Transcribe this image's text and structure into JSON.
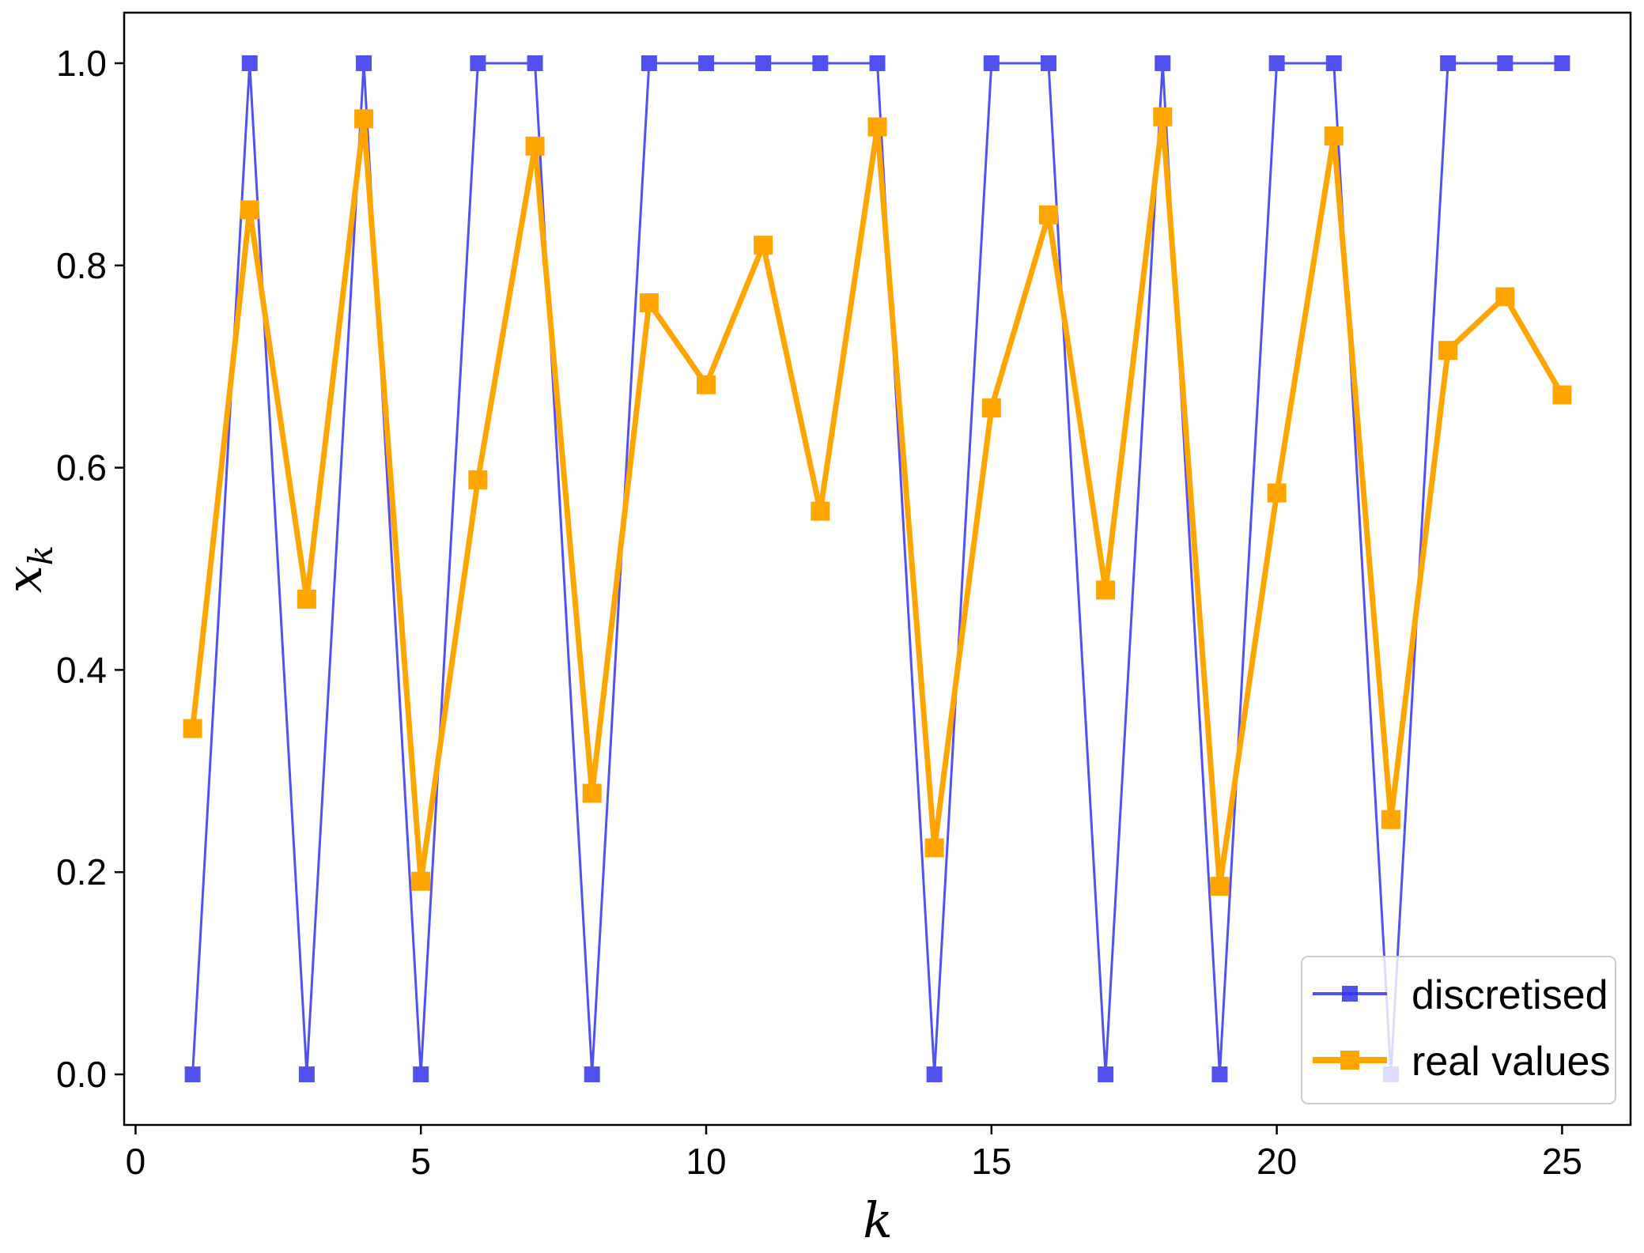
{
  "chart_data": {
    "type": "line",
    "x": [
      1,
      2,
      3,
      4,
      5,
      6,
      7,
      8,
      9,
      10,
      11,
      12,
      13,
      14,
      15,
      16,
      17,
      18,
      19,
      20,
      21,
      22,
      23,
      24,
      25
    ],
    "series": [
      {
        "name": "discretised",
        "color": "#3333ee",
        "marker": "square",
        "values": [
          0,
          1,
          0,
          1,
          0,
          1,
          1,
          0,
          1,
          1,
          1,
          1,
          1,
          0,
          1,
          1,
          0,
          1,
          0,
          1,
          1,
          0,
          1,
          1,
          1
        ]
      },
      {
        "name": "real values",
        "color": "#ffa500",
        "marker": "square",
        "values": [
          0.342,
          0.855,
          0.47,
          0.945,
          0.191,
          0.588,
          0.918,
          0.278,
          0.763,
          0.682,
          0.82,
          0.557,
          0.937,
          0.224,
          0.659,
          0.85,
          0.479,
          0.947,
          0.186,
          0.575,
          0.928,
          0.252,
          0.716,
          0.769,
          0.672
        ]
      }
    ],
    "xlabel": "k",
    "ylabel": "x_k",
    "xlim": [
      -0.2,
      26.2
    ],
    "ylim": [
      -0.05,
      1.05
    ],
    "xticks": [
      0,
      5,
      10,
      15,
      20,
      25
    ],
    "yticks": [
      0.0,
      0.2,
      0.4,
      0.6,
      0.8,
      1.0
    ],
    "xtick_labels": [
      "0",
      "5",
      "10",
      "15",
      "20",
      "25"
    ],
    "ytick_labels": [
      "0.0",
      "0.2",
      "0.4",
      "0.6",
      "0.8",
      "1.0"
    ],
    "legend_position": "bottom-right",
    "grid": false
  }
}
